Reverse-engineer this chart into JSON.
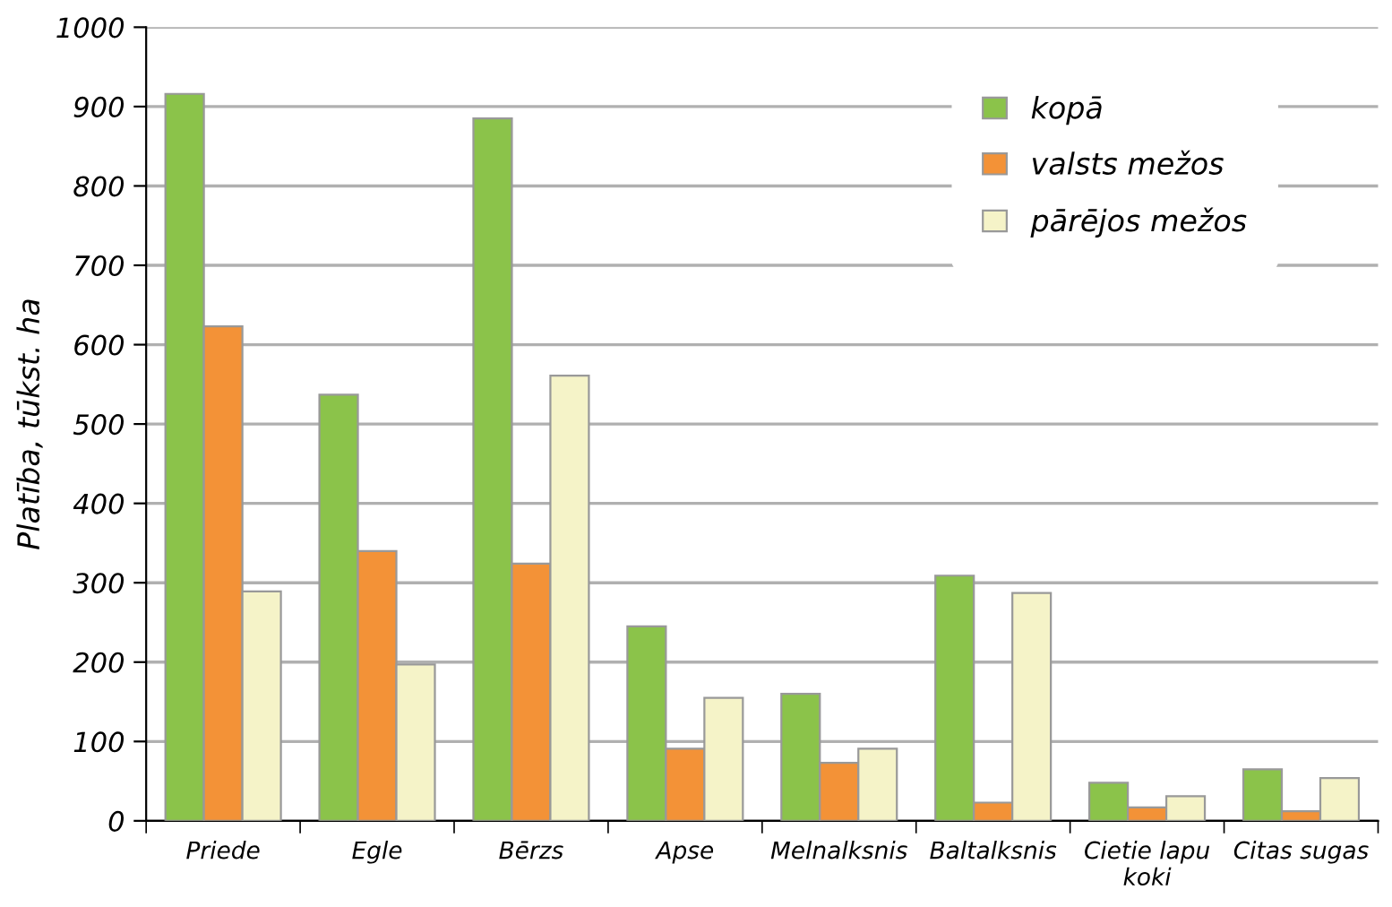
{
  "chart_data": {
    "type": "bar",
    "ylabel": "Platība, tūkst. ha",
    "categories": [
      "Priede",
      "Egle",
      "Bērzs",
      "Apse",
      "Melnalksnis",
      "Baltalksnis",
      "Cietie lapu\nkoki",
      "Citas sugas"
    ],
    "series": [
      {
        "name": "kopā",
        "color": "#8bc34a",
        "values": [
          916,
          537,
          885,
          245,
          160,
          309,
          48,
          65
        ]
      },
      {
        "name": "valsts mežos",
        "color": "#f39237",
        "values": [
          623,
          340,
          324,
          91,
          73,
          23,
          17,
          12
        ]
      },
      {
        "name": "pārējos mežos",
        "color": "#f5f3c8",
        "values": [
          289,
          197,
          561,
          155,
          91,
          287,
          31,
          54
        ]
      }
    ],
    "ylim": [
      0,
      1000
    ],
    "yticks": [
      0,
      100,
      200,
      300,
      400,
      500,
      600,
      700,
      800,
      900,
      1000
    ],
    "grid": "y",
    "legend": "top right"
  }
}
